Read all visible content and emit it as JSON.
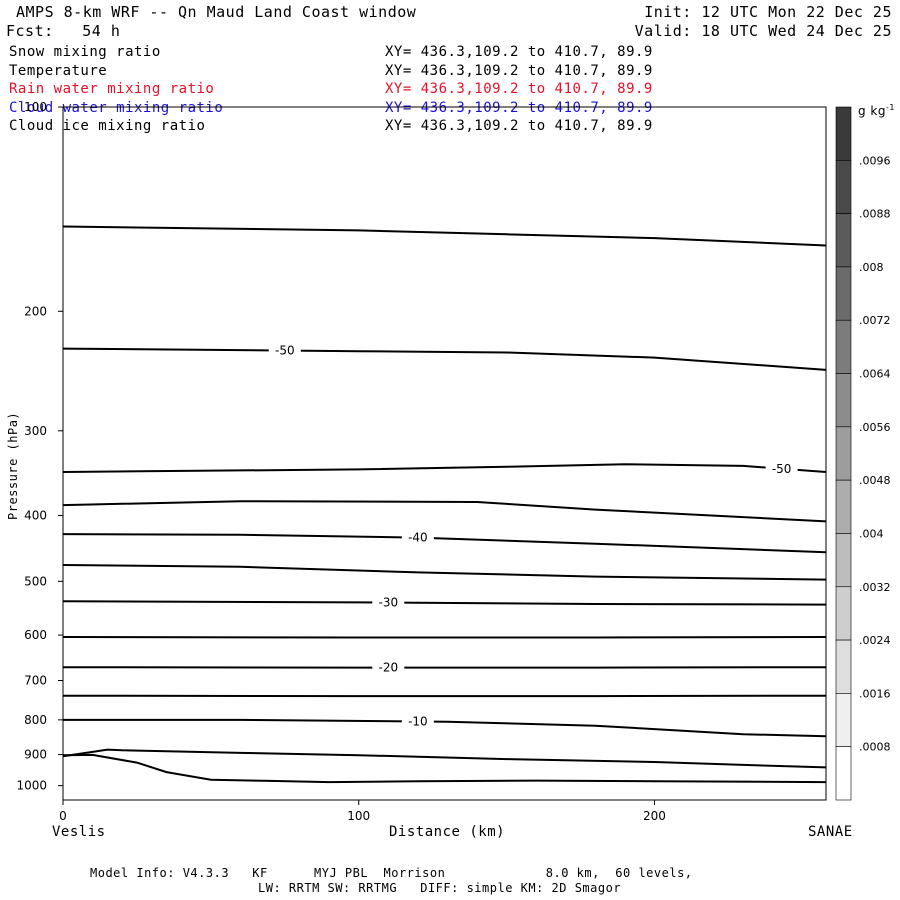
{
  "header": {
    "title": "AMPS 8-km WRF -- Qn Maud Land Coast window",
    "init": "Init: 12 UTC Mon 22 Dec 25",
    "forecast": "Fcst:   54 h",
    "valid": "Valid: 18 UTC Wed 24 Dec 25"
  },
  "legend": [
    {
      "name": "Snow mixing ratio",
      "coords": "XY= 436.3,109.2 to 410.7, 89.9",
      "color": "#000000"
    },
    {
      "name": "Temperature",
      "coords": "XY= 436.3,109.2 to 410.7, 89.9",
      "color": "#000000"
    },
    {
      "name": "Rain water mixing ratio",
      "coords": "XY= 436.3,109.2 to 410.7, 89.9",
      "color": "#e8102a"
    },
    {
      "name": "Cloud water mixing ratio",
      "coords": "XY= 436.3,109.2 to 410.7, 89.9",
      "color": "#1a10d6"
    },
    {
      "name": "Cloud ice mixing ratio",
      "coords": "XY= 436.3,109.2 to 410.7, 89.9",
      "color": "#000000"
    }
  ],
  "footer": {
    "line1": "Model Info: V4.3.3   KF      MYJ PBL  Morrison             8.0 km,  60 levels,",
    "line2": "LW: RRTM SW: RRTMG   DIFF: simple KM: 2D Smagor"
  },
  "chart_data": {
    "type": "line",
    "title": "AMPS 8-km WRF -- Qn Maud Land Coast window",
    "xlabel": "Distance (km)",
    "ylabel": "Pressure (hPa)",
    "xlim": [
      0,
      258
    ],
    "ylim": [
      1050,
      100
    ],
    "y_log_scale": true,
    "x_ticks": [
      "0",
      "100",
      "200"
    ],
    "y_ticks": [
      "100",
      "200",
      "300",
      "400",
      "500",
      "600",
      "700",
      "800",
      "900",
      "1000"
    ],
    "x_endpoints": {
      "left": "Veslis",
      "right": "SANAE"
    },
    "contour_field": "Temperature",
    "contours": [
      {
        "level": "",
        "points": [
          [
            0,
            150
          ],
          [
            100,
            152
          ],
          [
            150,
            154
          ],
          [
            200,
            156
          ],
          [
            258,
            160
          ]
        ]
      },
      {
        "level": "-50",
        "points": [
          [
            0,
            227
          ],
          [
            100,
            229
          ],
          [
            150,
            230
          ],
          [
            200,
            234
          ],
          [
            258,
            244
          ]
        ],
        "label": "-50",
        "label_x": 75
      },
      {
        "level": "-50",
        "points": [
          [
            0,
            345
          ],
          [
            100,
            342
          ],
          [
            150,
            339
          ],
          [
            190,
            336
          ],
          [
            230,
            338
          ],
          [
            258,
            345
          ]
        ],
        "label": "-50",
        "label_x": 243
      },
      {
        "level": "",
        "points": [
          [
            0,
            386
          ],
          [
            60,
            381
          ],
          [
            140,
            382
          ],
          [
            180,
            392
          ],
          [
            258,
            408
          ]
        ]
      },
      {
        "level": "-40",
        "points": [
          [
            0,
            426
          ],
          [
            60,
            427
          ],
          [
            120,
            431
          ],
          [
            180,
            440
          ],
          [
            258,
            453
          ]
        ],
        "label": "-40",
        "label_x": 120
      },
      {
        "level": "",
        "points": [
          [
            0,
            473
          ],
          [
            60,
            476
          ],
          [
            120,
            485
          ],
          [
            180,
            492
          ],
          [
            258,
            497
          ]
        ]
      },
      {
        "level": "-30",
        "points": [
          [
            0,
            535
          ],
          [
            100,
            537
          ],
          [
            180,
            540
          ],
          [
            258,
            541
          ]
        ],
        "label": "-30",
        "label_x": 110
      },
      {
        "level": "",
        "points": [
          [
            0,
            604
          ],
          [
            100,
            605
          ],
          [
            180,
            605
          ],
          [
            258,
            604
          ]
        ]
      },
      {
        "level": "-20",
        "points": [
          [
            0,
            669
          ],
          [
            100,
            670
          ],
          [
            180,
            670
          ],
          [
            258,
            669
          ]
        ],
        "label": "-20",
        "label_x": 110
      },
      {
        "level": "",
        "points": [
          [
            0,
            737
          ],
          [
            100,
            738
          ],
          [
            180,
            738
          ],
          [
            258,
            737
          ]
        ]
      },
      {
        "level": "-10",
        "points": [
          [
            0,
            800
          ],
          [
            60,
            800
          ],
          [
            130,
            805
          ],
          [
            180,
            816
          ],
          [
            230,
            840
          ],
          [
            258,
            846
          ]
        ],
        "label": "-10",
        "label_x": 120
      },
      {
        "level": "",
        "points": [
          [
            0,
            905
          ],
          [
            10,
            892
          ],
          [
            15,
            885
          ],
          [
            20,
            887
          ],
          [
            35,
            890
          ],
          [
            60,
            895
          ],
          [
            100,
            902
          ],
          [
            150,
            914
          ],
          [
            200,
            923
          ],
          [
            230,
            932
          ],
          [
            258,
            940
          ]
        ]
      },
      {
        "level": "",
        "points": [
          [
            0,
            902
          ],
          [
            10,
            901
          ],
          [
            25,
            925
          ],
          [
            35,
            955
          ],
          [
            50,
            980
          ],
          [
            70,
            984
          ],
          [
            90,
            988
          ],
          [
            120,
            985
          ],
          [
            160,
            983
          ],
          [
            200,
            985
          ],
          [
            258,
            988
          ]
        ]
      }
    ],
    "colorbar": {
      "units": "g kg",
      "units_exponent": "-1",
      "tick_labels": [
        ".0096",
        ".0088",
        ".008",
        ".0072",
        ".0064",
        ".0056",
        ".0048",
        ".004",
        ".0032",
        ".0024",
        ".0016",
        ".0008"
      ],
      "levels": 13
    }
  }
}
